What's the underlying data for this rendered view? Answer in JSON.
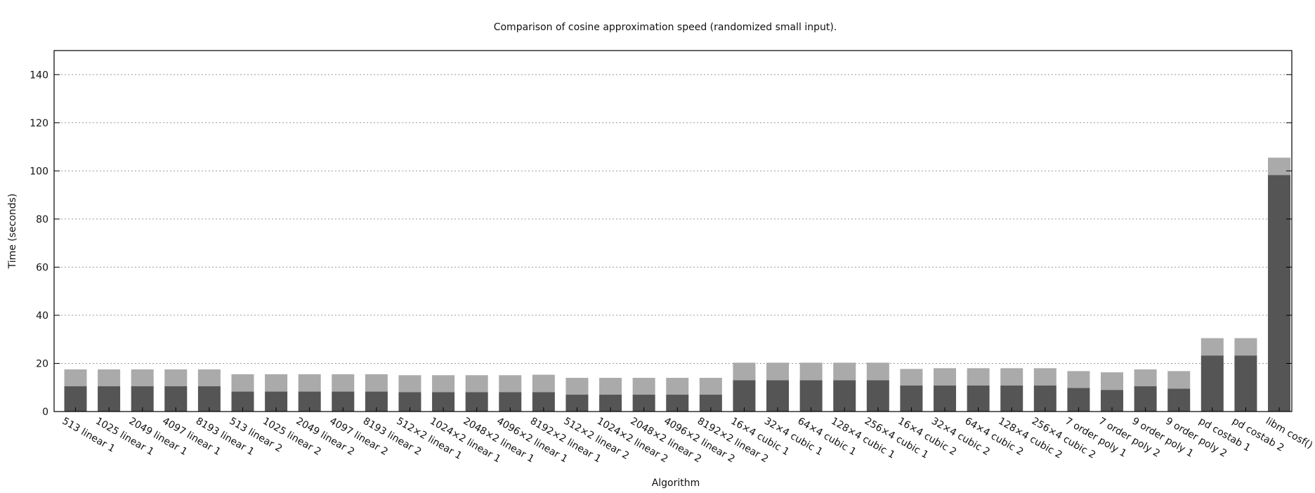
{
  "chart_data": {
    "type": "bar",
    "title": "Comparison of cosine approximation speed (randomized small input).",
    "xlabel": "Algorithm",
    "ylabel": "Time (seconds)",
    "ylim": [
      0,
      150
    ],
    "yticks": [
      0,
      20,
      40,
      60,
      80,
      100,
      120,
      140
    ],
    "grid": true,
    "stacked": true,
    "colors": {
      "lower": "#555555",
      "upper": "#aaaaaa"
    },
    "categories": [
      "513 linear 1",
      "1025 linear 1",
      "2049 linear 1",
      "4097 linear 1",
      "8193 linear 1",
      "513 linear 2",
      "1025 linear 2",
      "2049 linear 2",
      "4097 linear 2",
      "8193 linear 2",
      "512×2 linear 1",
      "1024×2 linear 1",
      "2048×2 linear 1",
      "4096×2 linear 1",
      "8192×2 linear 1",
      "512×2 linear 2",
      "1024×2 linear 2",
      "2048×2 linear 2",
      "4096×2 linear 2",
      "8192×2 linear 2",
      "16×4 cubic 1",
      "32×4 cubic 1",
      "64×4 cubic 1",
      "128×4 cubic 1",
      "256×4 cubic 1",
      "16×4 cubic 2",
      "32×4 cubic 2",
      "64×4 cubic 2",
      "128×4 cubic 2",
      "256×4 cubic 2",
      "7 order poly 1",
      "7 order poly 2",
      "9 order poly 1",
      "9 order poly 2",
      "pd costab 1",
      "pd costab 2",
      "libm cosf()"
    ],
    "series": [
      {
        "values": [
          10.5,
          10.5,
          10.5,
          10.5,
          10.5,
          8.3,
          8.3,
          8.3,
          8.3,
          8.3,
          8.1,
          8.1,
          8.1,
          8.1,
          8.1,
          7.0,
          7.0,
          7.0,
          7.0,
          7.0,
          13.0,
          13.0,
          13.0,
          13.0,
          13.0,
          10.8,
          10.8,
          10.8,
          10.8,
          10.8,
          9.8,
          9.0,
          10.5,
          9.5,
          23.3,
          23.3,
          98.3
        ]
      },
      {
        "values": [
          7.0,
          7.0,
          7.0,
          7.0,
          7.0,
          7.2,
          7.2,
          7.2,
          7.2,
          7.2,
          7.0,
          7.0,
          7.0,
          7.0,
          7.2,
          7.0,
          7.0,
          7.0,
          7.0,
          7.0,
          7.3,
          7.3,
          7.3,
          7.3,
          7.3,
          6.9,
          7.2,
          7.2,
          7.2,
          7.2,
          7.0,
          7.3,
          7.0,
          7.3,
          7.2,
          7.2,
          7.2
        ]
      }
    ]
  }
}
